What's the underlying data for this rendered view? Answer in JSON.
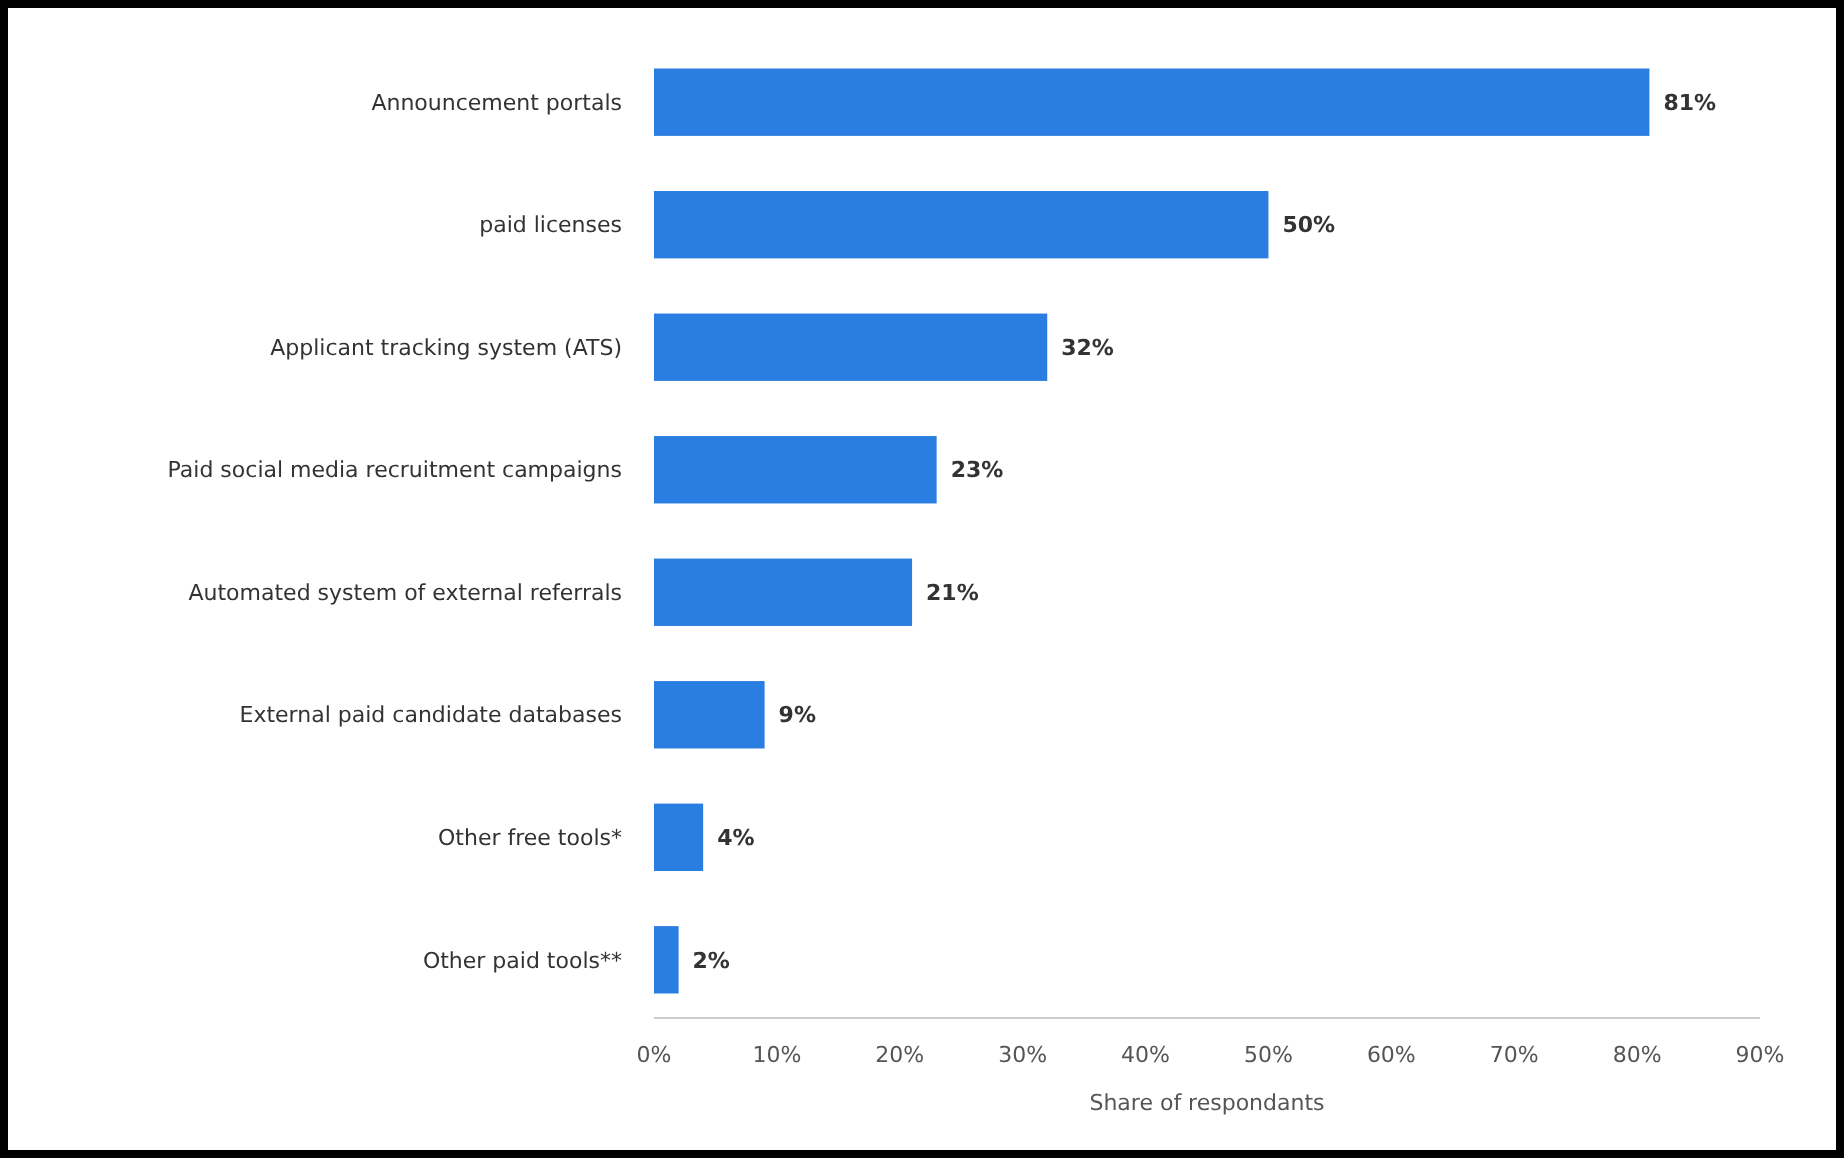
{
  "chart_data": {
    "type": "bar",
    "orientation": "horizontal",
    "xlabel": "Share of respondants",
    "categories": [
      "Announcement portals",
      "paid licenses",
      "Applicant tracking system (ATS)",
      "Paid social media recruitment campaigns",
      "Automated system of external referrals",
      "External paid candidate databases",
      "Other free tools*",
      "Other paid tools**"
    ],
    "values": [
      81,
      50,
      32,
      23,
      21,
      9,
      4,
      2
    ],
    "value_labels": [
      "81%",
      "50%",
      "32%",
      "23%",
      "21%",
      "9%",
      "4%",
      "2%"
    ],
    "color": "#2a7de1",
    "xlim": [
      0,
      90
    ],
    "xticks": [
      {
        "value": 0,
        "label": "0%"
      },
      {
        "value": 10,
        "label": "10%"
      },
      {
        "value": 20,
        "label": "20%"
      },
      {
        "value": 30,
        "label": "30%"
      },
      {
        "value": 40,
        "label": "40%"
      },
      {
        "value": 50,
        "label": "50%"
      },
      {
        "value": 60,
        "label": "60%"
      },
      {
        "value": 70,
        "label": "70%"
      },
      {
        "value": 80,
        "label": "80%"
      },
      {
        "value": 90,
        "label": "90%"
      }
    ],
    "grid": false
  }
}
